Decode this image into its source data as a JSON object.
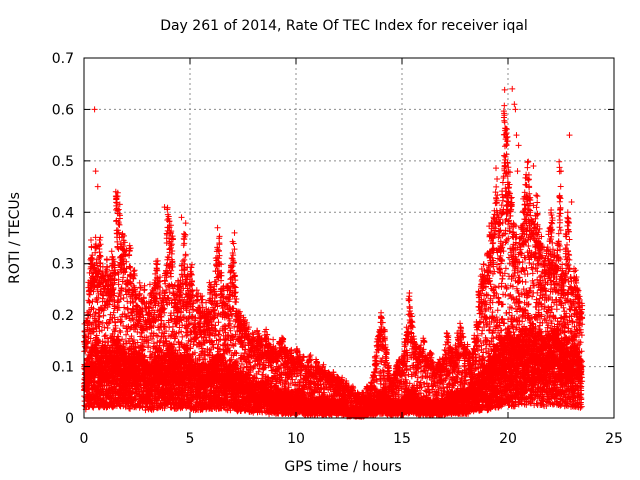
{
  "chart_data": {
    "type": "scatter",
    "title": "Day 261 of 2014, Rate Of TEC Index for receiver iqal",
    "xlabel": "GPS time / hours",
    "ylabel": "ROTI / TECUs",
    "xlim": [
      0,
      25
    ],
    "ylim": [
      0,
      0.7
    ],
    "x_ticks": [
      0,
      5,
      10,
      15,
      20,
      25
    ],
    "x_tick_labels": [
      "0",
      "5",
      "10",
      "15",
      "20",
      "25"
    ],
    "y_ticks": [
      0,
      0.1,
      0.2,
      0.3,
      0.4,
      0.5,
      0.6,
      0.7
    ],
    "y_tick_labels": [
      "0",
      "0.1",
      "0.2",
      "0.3",
      "0.4",
      "0.5",
      "0.6",
      "0.7"
    ],
    "grid": true,
    "marker": "plus",
    "color": "#ff0000",
    "series": [
      {
        "name": "ROTI",
        "x": [
          0.0,
          0.1,
          0.2,
          0.3,
          0.4,
          0.5,
          0.6,
          0.7,
          0.8,
          0.9,
          1.0,
          1.1,
          1.2,
          1.3,
          1.4,
          1.5,
          1.6,
          1.7,
          1.8,
          1.9,
          2.0,
          2.1,
          2.2,
          2.3,
          2.4,
          2.5,
          2.6,
          2.7,
          2.8,
          2.9,
          3.0,
          3.1,
          3.2,
          3.3,
          3.4,
          3.5,
          3.6,
          3.7,
          3.8,
          3.9,
          4.0,
          4.1,
          4.2,
          4.3,
          4.4,
          4.5,
          4.6,
          4.7,
          4.8,
          4.9,
          5.0,
          5.1,
          5.2,
          5.3,
          5.4,
          5.5,
          5.6,
          5.7,
          5.8,
          5.9,
          6.0,
          6.1,
          6.2,
          6.3,
          6.4,
          6.5,
          6.6,
          6.7,
          6.8,
          6.9,
          7.0,
          7.1,
          7.2,
          7.3,
          7.4,
          7.5,
          7.6,
          7.7,
          7.8,
          7.9,
          8.0,
          8.1,
          8.2,
          8.3,
          8.4,
          8.5,
          8.6,
          8.7,
          8.8,
          8.9,
          9.0,
          9.1,
          9.2,
          9.3,
          9.4,
          9.5,
          9.6,
          9.7,
          9.8,
          9.9,
          10.0,
          10.1,
          10.2,
          10.3,
          10.4,
          10.5,
          10.6,
          10.7,
          10.8,
          10.9,
          11.0,
          11.1,
          11.2,
          11.3,
          11.4,
          11.5,
          11.6,
          11.7,
          11.8,
          11.9,
          12.0,
          12.1,
          12.2,
          12.3,
          12.4,
          12.5,
          12.6,
          12.7,
          12.8,
          12.9,
          13.0,
          13.1,
          13.2,
          13.3,
          13.4,
          13.5,
          13.6,
          13.7,
          13.8,
          13.9,
          14.0,
          14.1,
          14.2,
          14.3,
          14.4,
          14.5,
          14.6,
          14.7,
          14.8,
          14.9,
          15.0,
          15.1,
          15.2,
          15.3,
          15.4,
          15.5,
          15.6,
          15.7,
          15.8,
          15.9,
          16.0,
          16.1,
          16.2,
          16.3,
          16.4,
          16.5,
          16.6,
          16.7,
          16.8,
          16.9,
          17.0,
          17.1,
          17.2,
          17.3,
          17.4,
          17.5,
          17.6,
          17.7,
          17.8,
          17.9,
          18.0,
          18.1,
          18.2,
          18.3,
          18.4,
          18.5,
          18.6,
          18.7,
          18.8,
          18.9,
          19.0,
          19.1,
          19.2,
          19.3,
          19.4,
          19.5,
          19.6,
          19.7,
          19.8,
          19.9,
          20.0,
          20.1,
          20.2,
          20.3,
          20.4,
          20.5,
          20.6,
          20.7,
          20.8,
          20.9,
          21.0,
          21.1,
          21.2,
          21.3,
          21.4,
          21.5,
          21.6,
          21.7,
          21.8,
          21.9,
          22.0,
          22.1,
          22.2,
          22.3,
          22.4,
          22.5,
          22.6,
          22.7,
          22.8,
          22.9,
          23.0,
          23.1,
          23.2,
          23.3,
          23.4,
          23.5,
          23.6,
          23.7
        ],
        "upper_envelope": [
          0.18,
          0.2,
          0.28,
          0.34,
          0.3,
          0.36,
          0.3,
          0.34,
          0.3,
          0.27,
          0.3,
          0.27,
          0.28,
          0.33,
          0.3,
          0.44,
          0.4,
          0.34,
          0.36,
          0.33,
          0.28,
          0.34,
          0.27,
          0.28,
          0.24,
          0.22,
          0.26,
          0.23,
          0.25,
          0.22,
          0.24,
          0.26,
          0.24,
          0.28,
          0.3,
          0.27,
          0.22,
          0.24,
          0.3,
          0.4,
          0.39,
          0.35,
          0.26,
          0.24,
          0.27,
          0.26,
          0.3,
          0.38,
          0.3,
          0.26,
          0.29,
          0.24,
          0.19,
          0.24,
          0.21,
          0.23,
          0.2,
          0.22,
          0.21,
          0.26,
          0.24,
          0.27,
          0.32,
          0.37,
          0.31,
          0.26,
          0.23,
          0.26,
          0.25,
          0.3,
          0.35,
          0.28,
          0.21,
          0.2,
          0.18,
          0.2,
          0.18,
          0.17,
          0.15,
          0.16,
          0.15,
          0.17,
          0.16,
          0.15,
          0.14,
          0.17,
          0.16,
          0.14,
          0.13,
          0.15,
          0.14,
          0.13,
          0.15,
          0.16,
          0.14,
          0.13,
          0.12,
          0.13,
          0.12,
          0.11,
          0.13,
          0.12,
          0.11,
          0.12,
          0.1,
          0.11,
          0.12,
          0.1,
          0.09,
          0.11,
          0.1,
          0.09,
          0.1,
          0.09,
          0.08,
          0.09,
          0.08,
          0.09,
          0.07,
          0.08,
          0.07,
          0.08,
          0.06,
          0.07,
          0.06,
          0.05,
          0.06,
          0.05,
          0.04,
          0.05,
          0.04,
          0.05,
          0.04,
          0.06,
          0.05,
          0.07,
          0.09,
          0.12,
          0.16,
          0.18,
          0.2,
          0.18,
          0.14,
          0.1,
          0.08,
          0.07,
          0.09,
          0.1,
          0.11,
          0.09,
          0.12,
          0.15,
          0.17,
          0.24,
          0.2,
          0.17,
          0.14,
          0.12,
          0.14,
          0.13,
          0.15,
          0.12,
          0.11,
          0.13,
          0.11,
          0.09,
          0.1,
          0.11,
          0.1,
          0.12,
          0.14,
          0.16,
          0.14,
          0.13,
          0.12,
          0.14,
          0.16,
          0.18,
          0.16,
          0.14,
          0.15,
          0.13,
          0.12,
          0.13,
          0.16,
          0.19,
          0.24,
          0.28,
          0.3,
          0.27,
          0.32,
          0.36,
          0.38,
          0.41,
          0.47,
          0.42,
          0.39,
          0.45,
          0.62,
          0.55,
          0.48,
          0.43,
          0.38,
          0.36,
          0.33,
          0.35,
          0.39,
          0.43,
          0.46,
          0.48,
          0.44,
          0.4,
          0.38,
          0.42,
          0.36,
          0.34,
          0.32,
          0.3,
          0.33,
          0.37,
          0.4,
          0.33,
          0.3,
          0.35,
          0.48,
          0.3,
          0.27,
          0.36,
          0.39,
          0.29,
          0.25,
          0.28,
          0.27,
          0.25,
          0.22
        ],
        "baseline": [
          0.06,
          0.07,
          0.08,
          0.08,
          0.08,
          0.09,
          0.09,
          0.08,
          0.08,
          0.08,
          0.07,
          0.07,
          0.08,
          0.08,
          0.09,
          0.09,
          0.09,
          0.08,
          0.08,
          0.08,
          0.07,
          0.07,
          0.08,
          0.08,
          0.08,
          0.07,
          0.07,
          0.08,
          0.07,
          0.06,
          0.06,
          0.06,
          0.06,
          0.07,
          0.07,
          0.07,
          0.07,
          0.07,
          0.07,
          0.08,
          0.08,
          0.08,
          0.07,
          0.07,
          0.07,
          0.07,
          0.07,
          0.08,
          0.08,
          0.07,
          0.07,
          0.06,
          0.06,
          0.06,
          0.06,
          0.06,
          0.06,
          0.06,
          0.06,
          0.07,
          0.07,
          0.07,
          0.07,
          0.07,
          0.07,
          0.07,
          0.06,
          0.06,
          0.06,
          0.06,
          0.06,
          0.06,
          0.05,
          0.05,
          0.05,
          0.05,
          0.05,
          0.05,
          0.04,
          0.04,
          0.04,
          0.04,
          0.04,
          0.04,
          0.04,
          0.04,
          0.04,
          0.03,
          0.03,
          0.03,
          0.03,
          0.03,
          0.03,
          0.03,
          0.03,
          0.03,
          0.03,
          0.03,
          0.03,
          0.03,
          0.03,
          0.03,
          0.03,
          0.03,
          0.02,
          0.02,
          0.02,
          0.02,
          0.02,
          0.02,
          0.02,
          0.02,
          0.02,
          0.02,
          0.02,
          0.02,
          0.02,
          0.02,
          0.02,
          0.02,
          0.02,
          0.02,
          0.02,
          0.02,
          0.01,
          0.01,
          0.01,
          0.01,
          0.01,
          0.01,
          0.01,
          0.01,
          0.01,
          0.02,
          0.02,
          0.02,
          0.02,
          0.02,
          0.03,
          0.03,
          0.03,
          0.03,
          0.03,
          0.02,
          0.02,
          0.02,
          0.02,
          0.02,
          0.02,
          0.02,
          0.02,
          0.03,
          0.03,
          0.03,
          0.03,
          0.03,
          0.03,
          0.02,
          0.02,
          0.02,
          0.02,
          0.02,
          0.02,
          0.02,
          0.02,
          0.02,
          0.02,
          0.02,
          0.02,
          0.02,
          0.02,
          0.03,
          0.03,
          0.03,
          0.03,
          0.03,
          0.03,
          0.03,
          0.03,
          0.03,
          0.03,
          0.03,
          0.04,
          0.04,
          0.04,
          0.04,
          0.05,
          0.05,
          0.06,
          0.06,
          0.06,
          0.07,
          0.07,
          0.08,
          0.08,
          0.08,
          0.09,
          0.09,
          0.09,
          0.1,
          0.1,
          0.09,
          0.09,
          0.09,
          0.09,
          0.1,
          0.1,
          0.1,
          0.1,
          0.1,
          0.11,
          0.11,
          0.1,
          0.1,
          0.1,
          0.1,
          0.09,
          0.09,
          0.09,
          0.09,
          0.1,
          0.1,
          0.1,
          0.1,
          0.09,
          0.09,
          0.09,
          0.09,
          0.09,
          0.08,
          0.08,
          0.08,
          0.08,
          0.07,
          0.07
        ],
        "outliers": [
          {
            "x": 0.5,
            "y": 0.6
          },
          {
            "x": 0.55,
            "y": 0.48
          },
          {
            "x": 0.65,
            "y": 0.45
          },
          {
            "x": 1.5,
            "y": 0.44
          },
          {
            "x": 3.8,
            "y": 0.41
          },
          {
            "x": 4.6,
            "y": 0.39
          },
          {
            "x": 6.3,
            "y": 0.37
          },
          {
            "x": 7.1,
            "y": 0.36
          },
          {
            "x": 19.8,
            "y": 0.47
          },
          {
            "x": 20.2,
            "y": 0.64
          },
          {
            "x": 20.3,
            "y": 0.61
          },
          {
            "x": 20.35,
            "y": 0.6
          },
          {
            "x": 20.4,
            "y": 0.55
          },
          {
            "x": 20.45,
            "y": 0.48
          },
          {
            "x": 20.5,
            "y": 0.53
          },
          {
            "x": 21.2,
            "y": 0.49
          },
          {
            "x": 22.5,
            "y": 0.48
          },
          {
            "x": 22.9,
            "y": 0.55
          },
          {
            "x": 23.0,
            "y": 0.42
          }
        ]
      }
    ]
  }
}
